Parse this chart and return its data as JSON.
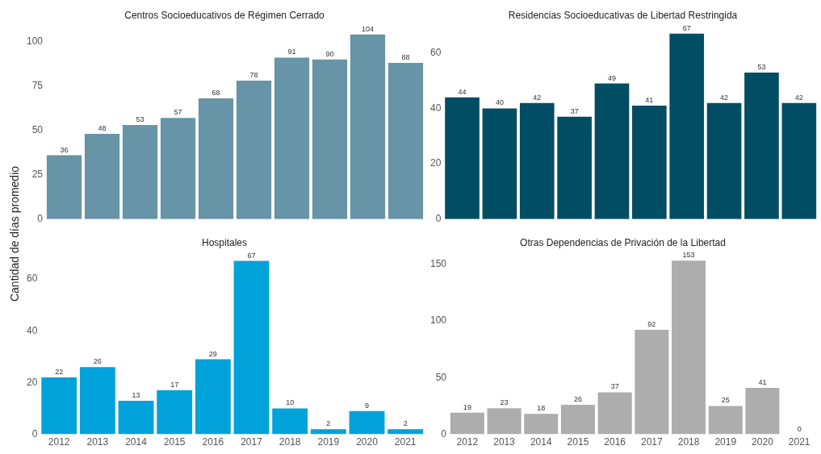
{
  "chart_data": [
    {
      "type": "bar",
      "title": "Centros Socioeducativos de Régimen Cerrado",
      "ylabel": "Cantidad de días promedio",
      "categories": [
        "2012",
        "2013",
        "2014",
        "2015",
        "2016",
        "2017",
        "2018",
        "2019",
        "2020",
        "2021"
      ],
      "values": [
        36,
        48,
        53,
        57,
        68,
        78,
        91,
        90,
        104,
        88
      ],
      "color": "#6794a7",
      "ylim": [
        0,
        106
      ],
      "yticks": [
        0,
        25,
        50,
        75,
        100
      ],
      "grid": false,
      "data_labels": true,
      "tick_labels": "y"
    },
    {
      "type": "bar",
      "title": "Residencias Socioeducativas de Libertad Restringida",
      "categories": [
        "2012",
        "2013",
        "2014",
        "2015",
        "2016",
        "2017",
        "2018",
        "2019",
        "2020",
        "2021"
      ],
      "values": [
        44,
        40,
        42,
        37,
        49,
        41,
        67,
        42,
        53,
        42
      ],
      "color": "#014d64",
      "ylim": [
        0,
        68
      ],
      "yticks": [
        0,
        20,
        40,
        60
      ],
      "grid": false,
      "data_labels": true,
      "tick_labels": "y"
    },
    {
      "type": "bar",
      "title": "Hospitales",
      "categories": [
        "2012",
        "2013",
        "2014",
        "2015",
        "2016",
        "2017",
        "2018",
        "2019",
        "2020",
        "2021"
      ],
      "values": [
        22,
        26,
        13,
        17,
        29,
        67,
        10,
        2,
        9,
        2
      ],
      "color": "#01a2d9",
      "ylim": [
        0,
        68
      ],
      "yticks": [
        0,
        20,
        40,
        60
      ],
      "grid": false,
      "data_labels": true
    },
    {
      "type": "bar",
      "title": "Otras Dependencias de Privación de la Libertad",
      "categories": [
        "2012",
        "2013",
        "2014",
        "2015",
        "2016",
        "2017",
        "2018",
        "2019",
        "2020",
        "2021"
      ],
      "values": [
        19,
        23,
        18,
        26,
        37,
        92,
        153,
        25,
        41,
        0
      ],
      "color": "#adadad",
      "ylim": [
        0,
        155
      ],
      "yticks": [
        0,
        50,
        100,
        150
      ],
      "grid": false,
      "data_labels": true
    }
  ]
}
